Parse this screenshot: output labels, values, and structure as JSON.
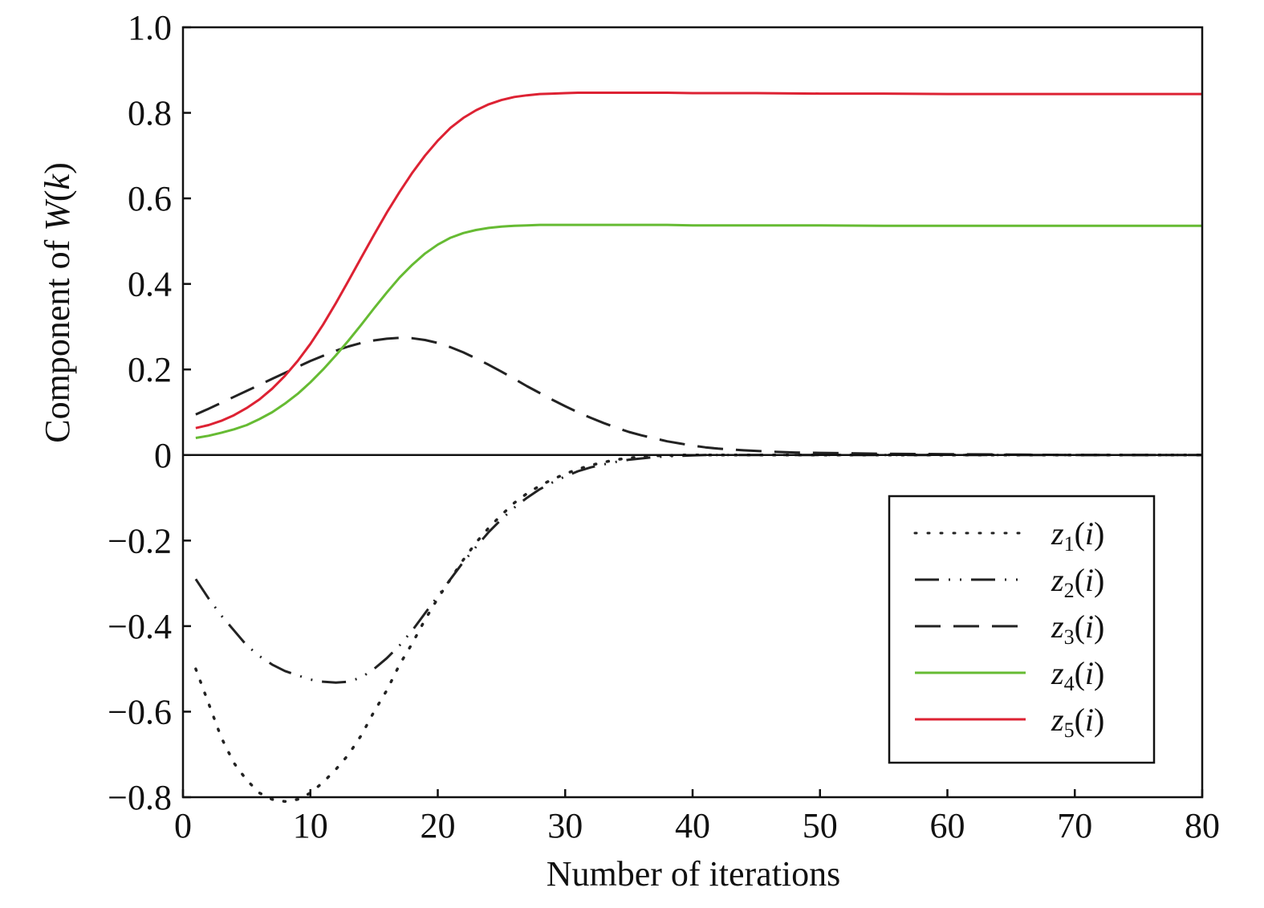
{
  "chart_data": {
    "type": "line",
    "title": "",
    "xlabel": "Number of iterations",
    "ylabel": {
      "prefix": "Component of ",
      "italic": "W",
      "open": "(",
      "arg": "k",
      "close": ")"
    },
    "xlim": [
      0,
      80
    ],
    "ylim": [
      -0.8,
      1.0
    ],
    "xticks": [
      0,
      10,
      20,
      30,
      40,
      50,
      60,
      70,
      80
    ],
    "xtick_labels": [
      "0",
      "10",
      "20",
      "30",
      "40",
      "50",
      "60",
      "70",
      "80"
    ],
    "yticks": [
      -0.8,
      -0.6,
      -0.4,
      -0.2,
      0,
      0.2,
      0.4,
      0.6,
      0.8,
      1.0
    ],
    "ytick_labels": [
      "−0.8",
      "−0.6",
      "−0.4",
      "−0.2",
      "0",
      "0.2",
      "0.4",
      "0.6",
      "0.8",
      "1.0"
    ],
    "grid": false,
    "zero_line": true,
    "legend": {
      "position": "bottom-right"
    },
    "series": [
      {
        "name": "z1(i)",
        "label": {
          "var": "z",
          "sub": "1",
          "arg": "i"
        },
        "color": "#222222",
        "style": "dotted",
        "x": [
          1,
          2,
          3,
          4,
          5,
          6,
          7,
          8,
          9,
          10,
          11,
          12,
          13,
          14,
          15,
          16,
          17,
          18,
          19,
          20,
          21,
          22,
          23,
          24,
          25,
          26,
          27,
          28,
          29,
          30,
          31,
          32,
          33,
          34,
          35,
          36,
          37,
          38,
          39,
          40,
          41,
          42,
          44,
          46,
          48,
          50,
          55,
          60,
          65,
          70,
          75,
          80
        ],
        "y": [
          -0.5,
          -0.58,
          -0.66,
          -0.72,
          -0.76,
          -0.79,
          -0.805,
          -0.81,
          -0.805,
          -0.79,
          -0.765,
          -0.735,
          -0.7,
          -0.655,
          -0.6,
          -0.55,
          -0.49,
          -0.44,
          -0.385,
          -0.335,
          -0.29,
          -0.245,
          -0.205,
          -0.17,
          -0.14,
          -0.112,
          -0.09,
          -0.072,
          -0.057,
          -0.044,
          -0.033,
          -0.024,
          -0.017,
          -0.011,
          -0.007,
          -0.004,
          -0.002,
          -0.001,
          0.0,
          0.0,
          0.0,
          0.0,
          0.0,
          0.0,
          0.0,
          0.0,
          0.0,
          0.0,
          0.0,
          0.0,
          0.0,
          0.0
        ]
      },
      {
        "name": "z2(i)",
        "label": {
          "var": "z",
          "sub": "2",
          "arg": "i"
        },
        "color": "#222222",
        "style": "dashdotdot",
        "x": [
          1,
          2,
          3,
          4,
          5,
          6,
          7,
          8,
          9,
          10,
          11,
          12,
          13,
          14,
          15,
          16,
          17,
          18,
          19,
          20,
          21,
          22,
          23,
          24,
          25,
          26,
          27,
          28,
          29,
          30,
          31,
          32,
          33,
          34,
          35,
          36,
          37,
          38,
          39,
          40,
          41,
          42,
          44,
          46,
          48,
          50,
          55,
          60,
          65,
          70,
          75,
          80
        ],
        "y": [
          -0.29,
          -0.335,
          -0.375,
          -0.41,
          -0.445,
          -0.47,
          -0.49,
          -0.505,
          -0.515,
          -0.525,
          -0.53,
          -0.532,
          -0.53,
          -0.52,
          -0.5,
          -0.475,
          -0.445,
          -0.41,
          -0.37,
          -0.33,
          -0.29,
          -0.25,
          -0.215,
          -0.18,
          -0.15,
          -0.123,
          -0.1,
          -0.08,
          -0.064,
          -0.05,
          -0.038,
          -0.029,
          -0.022,
          -0.016,
          -0.011,
          -0.008,
          -0.005,
          -0.003,
          -0.002,
          -0.001,
          0.0,
          0.0,
          0.0,
          0.0,
          0.0,
          0.0,
          0.0,
          0.0,
          0.0,
          0.0,
          0.0,
          0.0
        ]
      },
      {
        "name": "z3(i)",
        "label": {
          "var": "z",
          "sub": "3",
          "arg": "i"
        },
        "color": "#222222",
        "style": "dashed",
        "x": [
          1,
          2,
          3,
          4,
          5,
          6,
          7,
          8,
          9,
          10,
          11,
          12,
          13,
          14,
          15,
          16,
          17,
          18,
          19,
          20,
          21,
          22,
          23,
          24,
          25,
          26,
          27,
          28,
          29,
          30,
          31,
          32,
          33,
          34,
          35,
          36,
          37,
          38,
          39,
          40,
          41,
          42,
          44,
          46,
          48,
          50,
          55,
          60,
          65,
          70,
          75,
          80
        ],
        "y": [
          0.095,
          0.108,
          0.122,
          0.136,
          0.15,
          0.164,
          0.178,
          0.192,
          0.206,
          0.22,
          0.232,
          0.244,
          0.254,
          0.262,
          0.268,
          0.272,
          0.274,
          0.273,
          0.269,
          0.262,
          0.252,
          0.24,
          0.226,
          0.211,
          0.195,
          0.178,
          0.161,
          0.145,
          0.129,
          0.114,
          0.1,
          0.087,
          0.075,
          0.064,
          0.054,
          0.046,
          0.039,
          0.032,
          0.027,
          0.022,
          0.018,
          0.015,
          0.011,
          0.008,
          0.006,
          0.005,
          0.003,
          0.002,
          0.001,
          0.0,
          0.0,
          0.0
        ]
      },
      {
        "name": "z4(i)",
        "label": {
          "var": "z",
          "sub": "4",
          "arg": "i"
        },
        "color": "#66bb33",
        "style": "solid",
        "x": [
          1,
          2,
          3,
          4,
          5,
          6,
          7,
          8,
          9,
          10,
          11,
          12,
          13,
          14,
          15,
          16,
          17,
          18,
          19,
          20,
          21,
          22,
          23,
          24,
          25,
          26,
          27,
          28,
          29,
          30,
          31,
          32,
          33,
          34,
          35,
          36,
          38,
          40,
          45,
          50,
          55,
          60,
          65,
          70,
          75,
          80
        ],
        "y": [
          0.04,
          0.045,
          0.052,
          0.06,
          0.07,
          0.084,
          0.1,
          0.12,
          0.143,
          0.17,
          0.2,
          0.233,
          0.268,
          0.305,
          0.343,
          0.38,
          0.415,
          0.445,
          0.471,
          0.492,
          0.508,
          0.519,
          0.526,
          0.531,
          0.534,
          0.536,
          0.537,
          0.538,
          0.538,
          0.538,
          0.538,
          0.538,
          0.538,
          0.538,
          0.538,
          0.538,
          0.538,
          0.537,
          0.537,
          0.537,
          0.536,
          0.536,
          0.536,
          0.536,
          0.536,
          0.536
        ]
      },
      {
        "name": "z5(i)",
        "label": {
          "var": "z",
          "sub": "5",
          "arg": "i"
        },
        "color": "#dd2233",
        "style": "solid",
        "x": [
          1,
          2,
          3,
          4,
          5,
          6,
          7,
          8,
          9,
          10,
          11,
          12,
          13,
          14,
          15,
          16,
          17,
          18,
          19,
          20,
          21,
          22,
          23,
          24,
          25,
          26,
          27,
          28,
          29,
          30,
          31,
          32,
          33,
          34,
          35,
          36,
          38,
          40,
          45,
          50,
          55,
          60,
          65,
          70,
          75,
          80
        ],
        "y": [
          0.063,
          0.07,
          0.08,
          0.093,
          0.11,
          0.13,
          0.155,
          0.185,
          0.22,
          0.26,
          0.305,
          0.355,
          0.408,
          0.462,
          0.515,
          0.567,
          0.615,
          0.66,
          0.7,
          0.735,
          0.765,
          0.788,
          0.806,
          0.82,
          0.83,
          0.837,
          0.841,
          0.844,
          0.845,
          0.846,
          0.847,
          0.847,
          0.847,
          0.847,
          0.847,
          0.847,
          0.847,
          0.846,
          0.846,
          0.845,
          0.845,
          0.844,
          0.844,
          0.844,
          0.844,
          0.844
        ]
      }
    ]
  }
}
